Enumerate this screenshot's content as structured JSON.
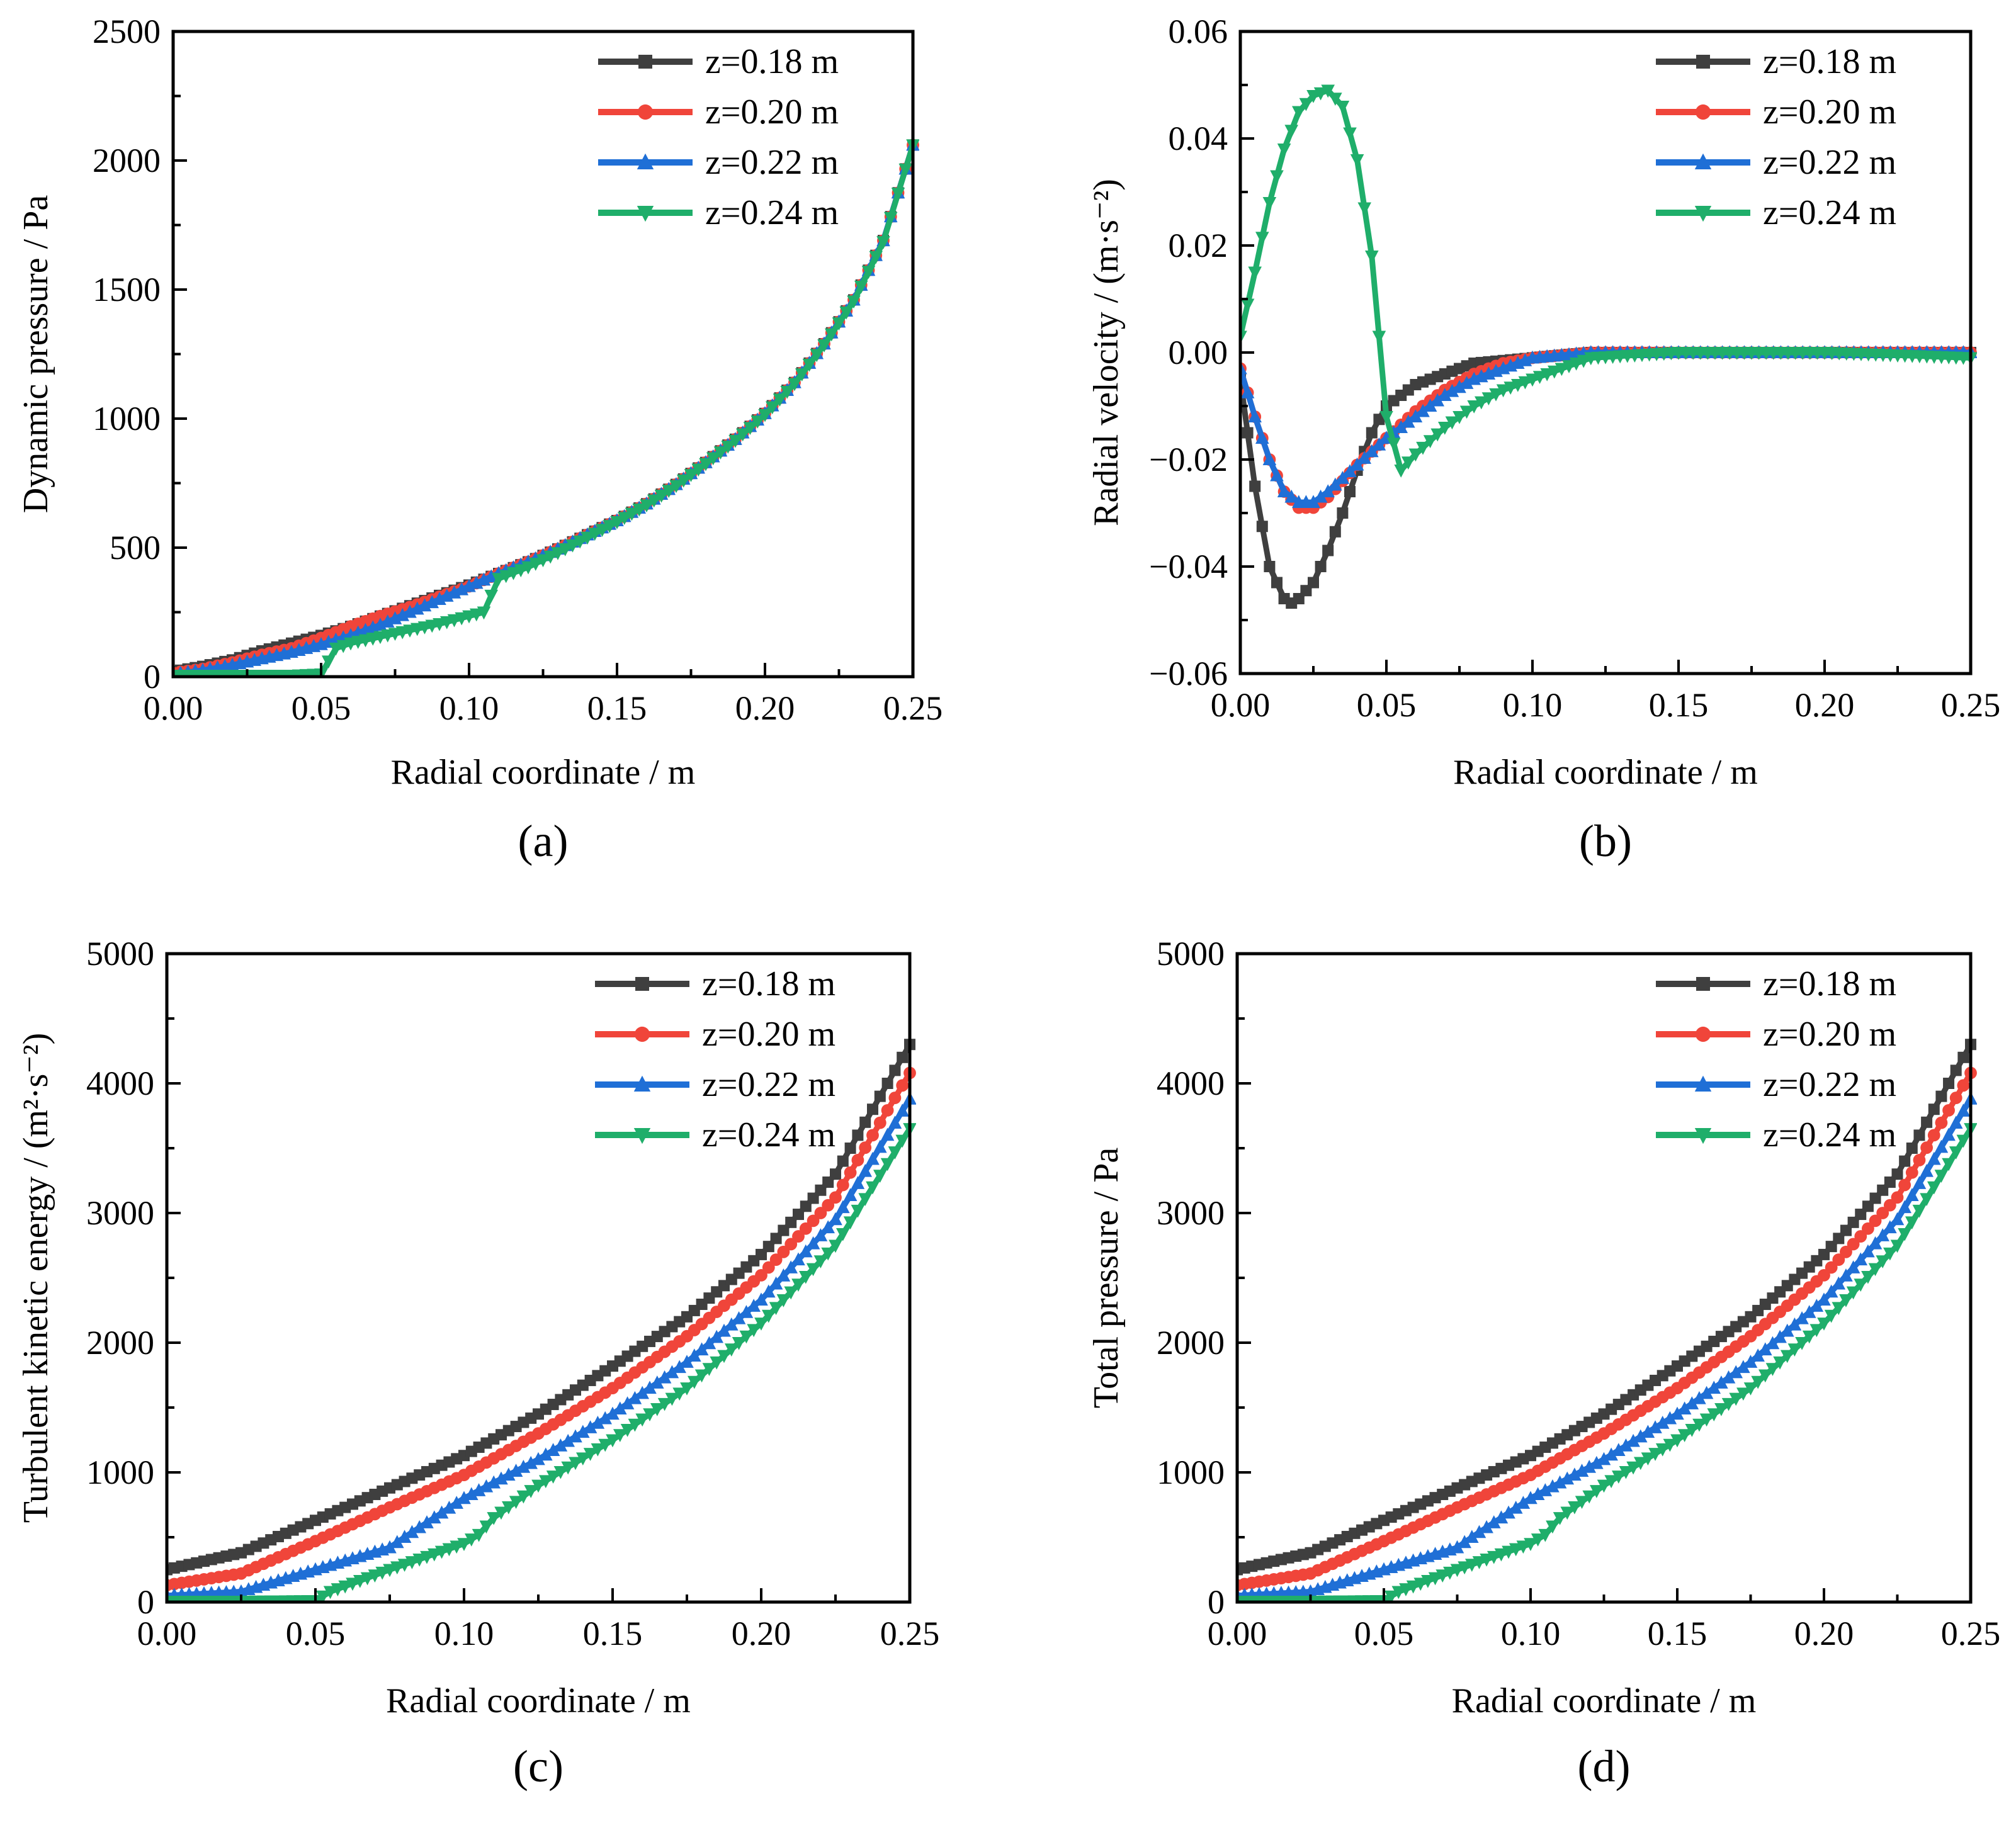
{
  "figure": {
    "panels": [
      "a",
      "b",
      "c",
      "d"
    ]
  },
  "colors": {
    "z018": "#3f3f3f",
    "z020": "#f0453a",
    "z022": "#1f6fd6",
    "z024": "#1fae6a"
  },
  "legend_labels": [
    "z=0.18 m",
    "z=0.20 m",
    "z=0.22 m",
    "z=0.24 m"
  ],
  "chart_data": [
    {
      "panel_label": "(a)",
      "type": "line",
      "xlabel": "Radial coordinate / m",
      "ylabel": "Dynamic pressure / Pa",
      "xlim": [
        0,
        0.25
      ],
      "ylim": [
        0,
        2500
      ],
      "xticks": [
        "0.00",
        "0.05",
        "0.10",
        "0.15",
        "0.20",
        "0.25"
      ],
      "yticks": [
        "0",
        "500",
        "1000",
        "1500",
        "2000",
        "2500"
      ],
      "legend_position": "top-right",
      "series": [
        {
          "name": "z=0.18 m",
          "marker": "square",
          "x": [
            0,
            0.01,
            0.02,
            0.03,
            0.04,
            0.05,
            0.06,
            0.07,
            0.08,
            0.09,
            0.1,
            0.11,
            0.12,
            0.13,
            0.14,
            0.15,
            0.16,
            0.17,
            0.18,
            0.19,
            0.2,
            0.21,
            0.22,
            0.23,
            0.24,
            0.25
          ],
          "y": [
            20,
            40,
            65,
            100,
            130,
            160,
            195,
            235,
            275,
            315,
            355,
            400,
            445,
            495,
            550,
            605,
            670,
            745,
            830,
            920,
            1020,
            1140,
            1290,
            1460,
            1690,
            2060
          ]
        },
        {
          "name": "z=0.20 m",
          "marker": "circle",
          "x": [
            0,
            0.01,
            0.02,
            0.03,
            0.04,
            0.05,
            0.06,
            0.07,
            0.08,
            0.09,
            0.1,
            0.11,
            0.12,
            0.13,
            0.14,
            0.15,
            0.16,
            0.17,
            0.18,
            0.19,
            0.2,
            0.21,
            0.22,
            0.23,
            0.24,
            0.25
          ],
          "y": [
            15,
            30,
            55,
            85,
            110,
            150,
            195,
            235,
            270,
            310,
            350,
            400,
            445,
            495,
            550,
            605,
            670,
            745,
            830,
            920,
            1020,
            1140,
            1290,
            1460,
            1690,
            2060
          ]
        },
        {
          "name": "z=0.22 m",
          "marker": "triangle-up",
          "x": [
            0,
            0.01,
            0.02,
            0.03,
            0.04,
            0.05,
            0.06,
            0.07,
            0.08,
            0.09,
            0.1,
            0.11,
            0.12,
            0.13,
            0.14,
            0.15,
            0.16,
            0.17,
            0.18,
            0.19,
            0.2,
            0.21,
            0.22,
            0.23,
            0.24,
            0.25
          ],
          "y": [
            10,
            25,
            45,
            70,
            95,
            125,
            160,
            200,
            250,
            300,
            350,
            400,
            445,
            495,
            550,
            605,
            670,
            745,
            830,
            920,
            1020,
            1140,
            1290,
            1460,
            1690,
            2060
          ]
        },
        {
          "name": "z=0.24 m",
          "marker": "triangle-down",
          "x": [
            0,
            0.01,
            0.02,
            0.03,
            0.04,
            0.05,
            0.055,
            0.06,
            0.07,
            0.08,
            0.09,
            0.1,
            0.105,
            0.11,
            0.12,
            0.13,
            0.14,
            0.15,
            0.16,
            0.17,
            0.18,
            0.19,
            0.2,
            0.21,
            0.22,
            0.23,
            0.24,
            0.25
          ],
          "y": [
            5,
            5,
            5,
            5,
            5,
            10,
            110,
            130,
            155,
            180,
            205,
            235,
            250,
            380,
            425,
            480,
            540,
            600,
            665,
            740,
            825,
            915,
            1015,
            1135,
            1285,
            1455,
            1685,
            2060
          ]
        }
      ]
    },
    {
      "panel_label": "(b)",
      "type": "line",
      "xlabel": "Radial coordinate / m",
      "ylabel": "Radial velocity / (m·s⁻²)",
      "xlim": [
        0,
        0.25
      ],
      "ylim": [
        -0.06,
        0.06
      ],
      "xticks": [
        "0.00",
        "0.05",
        "0.10",
        "0.15",
        "0.20",
        "0.25"
      ],
      "yticks": [
        "-0.06",
        "-0.04",
        "-0.02",
        "0.00",
        "0.02",
        "0.04",
        "0.06"
      ],
      "legend_position": "top-right",
      "series": [
        {
          "name": "z=0.18 m",
          "marker": "square",
          "x": [
            0,
            0.005,
            0.01,
            0.015,
            0.018,
            0.02,
            0.025,
            0.03,
            0.035,
            0.04,
            0.045,
            0.05,
            0.06,
            0.07,
            0.08,
            0.1,
            0.12,
            0.15,
            0.2,
            0.25
          ],
          "y": [
            -0.005,
            -0.025,
            -0.04,
            -0.046,
            -0.047,
            -0.046,
            -0.043,
            -0.037,
            -0.03,
            -0.022,
            -0.015,
            -0.01,
            -0.006,
            -0.004,
            -0.002,
            -0.001,
            0.0,
            0.0,
            0.0,
            0.0
          ]
        },
        {
          "name": "z=0.20 m",
          "marker": "circle",
          "x": [
            0,
            0.005,
            0.01,
            0.015,
            0.02,
            0.025,
            0.03,
            0.04,
            0.05,
            0.06,
            0.07,
            0.08,
            0.09,
            0.1,
            0.12,
            0.15,
            0.2,
            0.25
          ],
          "y": [
            -0.003,
            -0.012,
            -0.02,
            -0.026,
            -0.029,
            -0.029,
            -0.027,
            -0.021,
            -0.016,
            -0.011,
            -0.007,
            -0.004,
            -0.002,
            -0.001,
            0.0,
            0.0,
            0.0,
            0.0
          ]
        },
        {
          "name": "z=0.22 m",
          "marker": "triangle-up",
          "x": [
            0,
            0.005,
            0.01,
            0.015,
            0.02,
            0.025,
            0.03,
            0.04,
            0.05,
            0.06,
            0.07,
            0.08,
            0.09,
            0.1,
            0.12,
            0.15,
            0.2,
            0.25
          ],
          "y": [
            -0.003,
            -0.012,
            -0.02,
            -0.026,
            -0.028,
            -0.028,
            -0.026,
            -0.021,
            -0.016,
            -0.012,
            -0.008,
            -0.005,
            -0.003,
            -0.001,
            0.0,
            0.0,
            0.0,
            0.0
          ]
        },
        {
          "name": "z=0.24 m",
          "marker": "triangle-down",
          "x": [
            0,
            0.005,
            0.01,
            0.015,
            0.02,
            0.025,
            0.03,
            0.035,
            0.04,
            0.045,
            0.05,
            0.055,
            0.06,
            0.07,
            0.08,
            0.09,
            0.1,
            0.11,
            0.12,
            0.15,
            0.2,
            0.25
          ],
          "y": [
            0.003,
            0.015,
            0.028,
            0.038,
            0.045,
            0.048,
            0.049,
            0.046,
            0.036,
            0.018,
            -0.012,
            -0.022,
            -0.019,
            -0.014,
            -0.01,
            -0.007,
            -0.005,
            -0.003,
            -0.001,
            0.0,
            0.0,
            -0.001
          ]
        }
      ]
    },
    {
      "panel_label": "(c)",
      "type": "line",
      "xlabel": "Radial coordinate / m",
      "ylabel": "Turbulent kinetic energy / (m²·s⁻²)",
      "xlim": [
        0,
        0.25
      ],
      "ylim": [
        0,
        5000
      ],
      "xticks": [
        "0.00",
        "0.05",
        "0.10",
        "0.15",
        "0.20",
        "0.25"
      ],
      "yticks": [
        "0",
        "1000",
        "2000",
        "3000",
        "4000",
        "5000"
      ],
      "legend_position": "top-right",
      "series": [
        {
          "name": "z=0.18 m",
          "marker": "square",
          "x": [
            0,
            0.025,
            0.05,
            0.075,
            0.1,
            0.125,
            0.15,
            0.175,
            0.2,
            0.225,
            0.25
          ],
          "y": [
            250,
            380,
            630,
            880,
            1130,
            1450,
            1820,
            2200,
            2680,
            3300,
            4300
          ]
        },
        {
          "name": "z=0.20 m",
          "marker": "circle",
          "x": [
            0,
            0.025,
            0.05,
            0.075,
            0.1,
            0.125,
            0.15,
            0.175,
            0.2,
            0.225,
            0.25
          ],
          "y": [
            130,
            220,
            470,
            730,
            980,
            1300,
            1650,
            2050,
            2520,
            3120,
            4080
          ]
        },
        {
          "name": "z=0.22 m",
          "marker": "triangle-up",
          "x": [
            0,
            0.025,
            0.05,
            0.075,
            0.08,
            0.1,
            0.125,
            0.15,
            0.175,
            0.2,
            0.225,
            0.25
          ],
          "y": [
            50,
            80,
            250,
            420,
            500,
            800,
            1100,
            1450,
            1850,
            2330,
            2950,
            3880
          ]
        },
        {
          "name": "z=0.24 m",
          "marker": "triangle-down",
          "x": [
            0,
            0.025,
            0.05,
            0.055,
            0.075,
            0.1,
            0.105,
            0.11,
            0.125,
            0.15,
            0.175,
            0.2,
            0.225,
            0.25
          ],
          "y": [
            5,
            5,
            10,
            80,
            250,
            450,
            520,
            650,
            900,
            1250,
            1650,
            2150,
            2750,
            3650
          ]
        }
      ]
    },
    {
      "panel_label": "(d)",
      "type": "line",
      "xlabel": "Radial coordinate / m",
      "ylabel": "Total pressure / Pa",
      "xlim": [
        0,
        0.25
      ],
      "ylim": [
        0,
        5000
      ],
      "xticks": [
        "0.00",
        "0.05",
        "0.10",
        "0.15",
        "0.20",
        "0.25"
      ],
      "yticks": [
        "0",
        "1000",
        "2000",
        "3000",
        "4000",
        "5000"
      ],
      "legend_position": "top-right",
      "series": [
        {
          "name": "z=0.18 m",
          "marker": "square",
          "x": [
            0,
            0.025,
            0.05,
            0.075,
            0.1,
            0.125,
            0.15,
            0.175,
            0.2,
            0.225,
            0.25
          ],
          "y": [
            250,
            380,
            630,
            880,
            1130,
            1450,
            1820,
            2200,
            2680,
            3300,
            4300
          ]
        },
        {
          "name": "z=0.20 m",
          "marker": "circle",
          "x": [
            0,
            0.025,
            0.05,
            0.075,
            0.1,
            0.125,
            0.15,
            0.175,
            0.2,
            0.225,
            0.25
          ],
          "y": [
            130,
            220,
            470,
            730,
            980,
            1300,
            1650,
            2050,
            2520,
            3120,
            4080
          ]
        },
        {
          "name": "z=0.22 m",
          "marker": "triangle-up",
          "x": [
            0,
            0.025,
            0.05,
            0.075,
            0.08,
            0.1,
            0.125,
            0.15,
            0.175,
            0.2,
            0.225,
            0.25
          ],
          "y": [
            50,
            80,
            250,
            420,
            500,
            800,
            1100,
            1450,
            1850,
            2330,
            2950,
            3880
          ]
        },
        {
          "name": "z=0.24 m",
          "marker": "triangle-down",
          "x": [
            0,
            0.025,
            0.05,
            0.055,
            0.075,
            0.1,
            0.105,
            0.11,
            0.125,
            0.15,
            0.175,
            0.2,
            0.225,
            0.25
          ],
          "y": [
            5,
            5,
            10,
            80,
            250,
            450,
            520,
            650,
            900,
            1250,
            1650,
            2150,
            2750,
            3650
          ]
        }
      ]
    }
  ]
}
